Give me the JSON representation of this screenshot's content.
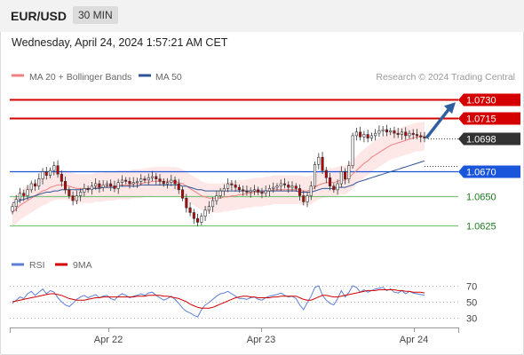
{
  "header": {
    "symbol": "EUR/USD",
    "timeframe": "30 MIN"
  },
  "timestamp": "Wednesday, April 24, 2024 1:57:21 AM CET",
  "legend": {
    "bollinger": {
      "label": "MA 20 + Bollinger Bands",
      "color": "#f08080"
    },
    "ma50": {
      "label": "MA 50",
      "color": "#2f5597"
    }
  },
  "credit": "Research © 2024 Trading Central",
  "colors": {
    "resistance": "#d40000",
    "pivot": "#1a56db",
    "support": "#7cc47c",
    "last_price_bg": "#333333",
    "candle_up": "#ffffff",
    "candle_down": "#c00000",
    "arrow": "#2f5f9e",
    "rsi": "#5b7fd6",
    "rsi_ma": "#d40000",
    "band_fill": "#fde4e4"
  },
  "chart_data": [
    {
      "type": "candlestick",
      "x_tick_labels": [
        "Apr 22",
        "Apr 23",
        "Apr 24"
      ],
      "y_range": [
        1.0612,
        1.0742
      ],
      "levels": [
        {
          "value": 1.073,
          "label": "1.0730",
          "kind": "resistance"
        },
        {
          "value": 1.0715,
          "label": "1.0715",
          "kind": "resistance"
        },
        {
          "value": 1.0698,
          "label": "1.0698",
          "kind": "last"
        },
        {
          "value": 1.067,
          "label": "1.0670",
          "kind": "pivot"
        },
        {
          "value": 1.065,
          "label": "1.0650",
          "kind": "support"
        },
        {
          "value": 1.0625,
          "label": "1.0625",
          "kind": "support"
        }
      ],
      "close": [
        1.0641,
        1.0647,
        1.0652,
        1.065,
        1.0655,
        1.066,
        1.0658,
        1.0664,
        1.067,
        1.0667,
        1.0671,
        1.0675,
        1.0668,
        1.0662,
        1.0655,
        1.065,
        1.0646,
        1.065,
        1.0653,
        1.0656,
        1.0655,
        1.0658,
        1.066,
        1.0657,
        1.0659,
        1.066,
        1.0658,
        1.0656,
        1.0661,
        1.0663,
        1.0662,
        1.066,
        1.0661,
        1.0662,
        1.0664,
        1.0663,
        1.0665,
        1.0666,
        1.0664,
        1.0662,
        1.066,
        1.0661,
        1.0663,
        1.066,
        1.0655,
        1.0648,
        1.064,
        1.0636,
        1.0631,
        1.0628,
        1.0633,
        1.0638,
        1.0641,
        1.0646,
        1.065,
        1.0654,
        1.0656,
        1.066,
        1.0659,
        1.0657,
        1.0655,
        1.0654,
        1.0653,
        1.0654,
        1.0655,
        1.0653,
        1.0652,
        1.0654,
        1.0656,
        1.0657,
        1.0658,
        1.066,
        1.0659,
        1.0657,
        1.0658,
        1.0656,
        1.065,
        1.0645,
        1.065,
        1.0658,
        1.0676,
        1.0682,
        1.0671,
        1.0665,
        1.0658,
        1.0655,
        1.066,
        1.067,
        1.0664,
        1.0675,
        1.07,
        1.0703,
        1.0699,
        1.0701,
        1.0698,
        1.07,
        1.0702,
        1.0704,
        1.0705,
        1.0703,
        1.0704,
        1.0702,
        1.0701,
        1.0703,
        1.07,
        1.0702,
        1.0701,
        1.07,
        1.0699,
        1.0698
      ],
      "ma20": [
        1.0636,
        1.0639,
        1.0642,
        1.0644,
        1.0646,
        1.0648,
        1.065,
        1.0652,
        1.0654,
        1.0655,
        1.0657,
        1.0658,
        1.0659,
        1.0659,
        1.0659,
        1.0658,
        1.0657,
        1.0656,
        1.0656,
        1.0656,
        1.0656,
        1.0656,
        1.0657,
        1.0657,
        1.0657,
        1.0658,
        1.0658,
        1.0658,
        1.0659,
        1.0659,
        1.0659,
        1.0659,
        1.066,
        1.066,
        1.066,
        1.0661,
        1.0661,
        1.0662,
        1.0662,
        1.0662,
        1.0662,
        1.0662,
        1.0662,
        1.0662,
        1.0661,
        1.066,
        1.0658,
        1.0656,
        1.0654,
        1.0652,
        1.065,
        1.0649,
        1.0648,
        1.0648,
        1.0648,
        1.0648,
        1.0649,
        1.0649,
        1.065,
        1.065,
        1.0651,
        1.0651,
        1.0652,
        1.0652,
        1.0653,
        1.0653,
        1.0653,
        1.0654,
        1.0654,
        1.0655,
        1.0655,
        1.0655,
        1.0655,
        1.0655,
        1.0655,
        1.0655,
        1.0655,
        1.0654,
        1.0654,
        1.0655,
        1.0657,
        1.0659,
        1.066,
        1.0661,
        1.0661,
        1.0661,
        1.0662,
        1.0663,
        1.0663,
        1.0665,
        1.0668,
        1.0671,
        1.0674,
        1.0677,
        1.0679,
        1.0682,
        1.0684,
        1.0686,
        1.0688,
        1.069,
        1.0692,
        1.0693,
        1.0694,
        1.0695,
        1.0696,
        1.0697,
        1.0698,
        1.0699,
        1.0699,
        1.07
      ],
      "ma50": [
        1.0644,
        1.0645,
        1.0646,
        1.0647,
        1.0648,
        1.0649,
        1.065,
        1.0651,
        1.0652,
        1.0653,
        1.0653,
        1.0654,
        1.0654,
        1.0655,
        1.0655,
        1.0655,
        1.0655,
        1.0655,
        1.0655,
        1.0655,
        1.0656,
        1.0656,
        1.0656,
        1.0656,
        1.0657,
        1.0657,
        1.0657,
        1.0657,
        1.0658,
        1.0658,
        1.0658,
        1.0658,
        1.0658,
        1.0658,
        1.0659,
        1.0659,
        1.0659,
        1.0659,
        1.0659,
        1.0659,
        1.0659,
        1.0659,
        1.0659,
        1.0659,
        1.0659,
        1.0658,
        1.0658,
        1.0657,
        1.0656,
        1.0655,
        1.0655,
        1.0654,
        1.0654,
        1.0654,
        1.0654,
        1.0654,
        1.0654,
        1.0654,
        1.0654,
        1.0654,
        1.0654,
        1.0654,
        1.0654,
        1.0654,
        1.0654,
        1.0654,
        1.0654,
        1.0654,
        1.0654,
        1.0654,
        1.0654,
        1.0654,
        1.0654,
        1.0654,
        1.0654,
        1.0654,
        1.0653,
        1.0653,
        1.0653,
        1.0653,
        1.0654,
        1.0655,
        1.0656,
        1.0656,
        1.0656,
        1.0656,
        1.0657,
        1.0657,
        1.0657,
        1.0658,
        1.0659,
        1.0661,
        1.0662,
        1.0663,
        1.0664,
        1.0665,
        1.0666,
        1.0667,
        1.0668,
        1.0669,
        1.067,
        1.0671,
        1.0672,
        1.0673,
        1.0674,
        1.0675,
        1.0676,
        1.0677,
        1.0678,
        1.0679
      ],
      "bb_width": 0.0012
    },
    {
      "type": "line",
      "legend": [
        {
          "name": "RSI",
          "color": "#5b7fd6"
        },
        {
          "name": "9MA",
          "color": "#d40000"
        }
      ],
      "y_ticks": [
        "70",
        "50",
        "30"
      ],
      "y_range": [
        20,
        80
      ],
      "rsi": [
        48,
        52,
        56,
        54,
        60,
        63,
        58,
        62,
        66,
        60,
        64,
        62,
        55,
        50,
        46,
        44,
        48,
        53,
        56,
        58,
        55,
        57,
        59,
        55,
        57,
        58,
        54,
        52,
        57,
        60,
        58,
        55,
        57,
        58,
        60,
        58,
        61,
        62,
        58,
        55,
        52,
        54,
        57,
        53,
        48,
        42,
        38,
        36,
        33,
        31,
        40,
        46,
        49,
        53,
        57,
        60,
        61,
        63,
        60,
        57,
        54,
        54,
        53,
        55,
        56,
        53,
        52,
        55,
        57,
        58,
        59,
        61,
        58,
        56,
        57,
        54,
        46,
        40,
        49,
        57,
        68,
        70,
        58,
        52,
        48,
        46,
        54,
        64,
        56,
        62,
        70,
        68,
        62,
        65,
        62,
        64,
        66,
        67,
        68,
        64,
        66,
        62,
        61,
        64,
        60,
        63,
        61,
        60,
        59,
        58
      ],
      "ma9": [
        50,
        51,
        52,
        53,
        54,
        55,
        56,
        57,
        58,
        59,
        60,
        60,
        59,
        58,
        56,
        54,
        53,
        52,
        52,
        52,
        53,
        54,
        55,
        55,
        56,
        56,
        56,
        56,
        56,
        56,
        56,
        56,
        56,
        57,
        57,
        57,
        58,
        58,
        58,
        58,
        57,
        57,
        56,
        55,
        54,
        52,
        50,
        47,
        45,
        43,
        42,
        42,
        42,
        43,
        45,
        47,
        49,
        51,
        53,
        55,
        56,
        57,
        57,
        56,
        56,
        55,
        55,
        55,
        55,
        56,
        56,
        57,
        57,
        57,
        57,
        57,
        55,
        53,
        52,
        52,
        54,
        56,
        58,
        58,
        57,
        56,
        56,
        57,
        58,
        59,
        60,
        61,
        62,
        63,
        64,
        64,
        64,
        65,
        65,
        65,
        65,
        65,
        64,
        64,
        63,
        63,
        62,
        62,
        62,
        61
      ]
    }
  ]
}
